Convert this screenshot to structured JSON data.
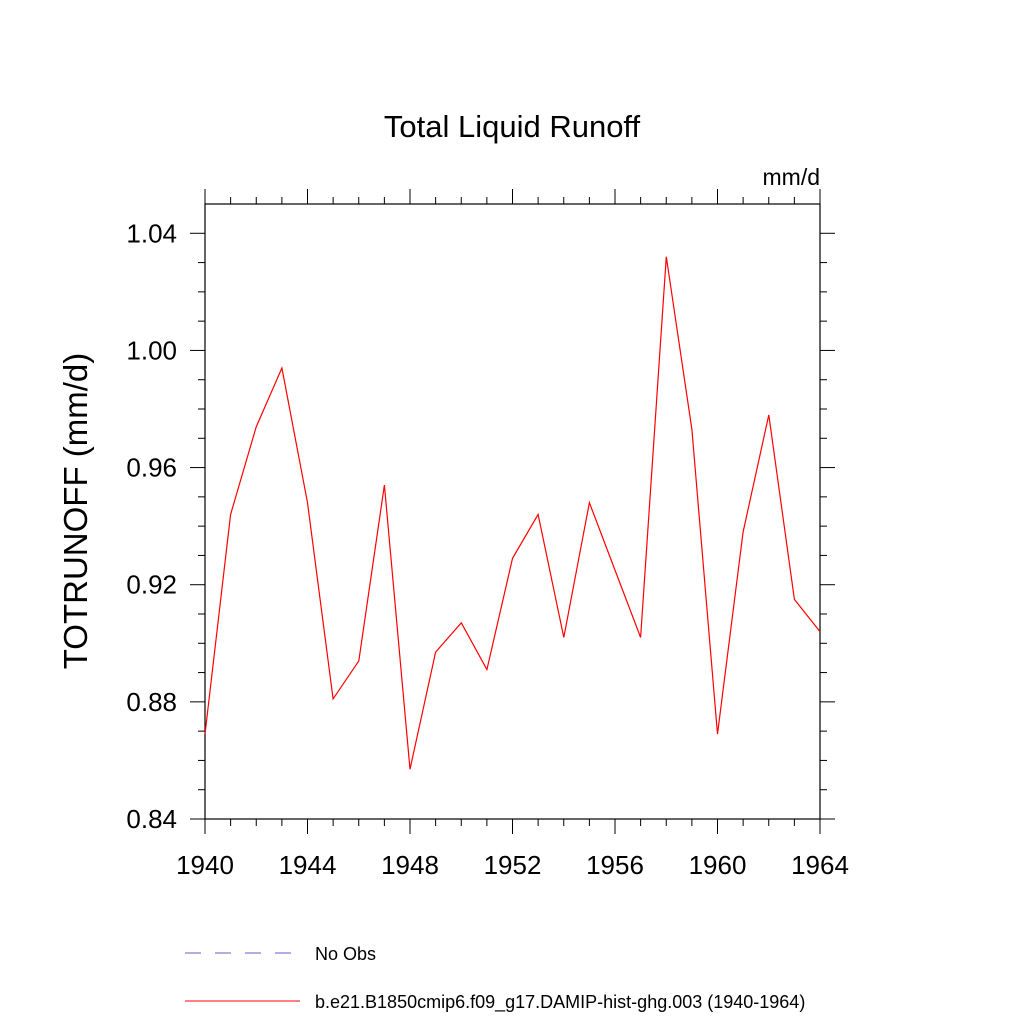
{
  "chart_data": {
    "type": "line",
    "title": "Total Liquid Runoff",
    "units_label": "mm/d",
    "ylabel": "TOTRUNOFF  (mm/d)",
    "xlabel": "",
    "xlim": [
      1940,
      1964
    ],
    "ylim": [
      0.84,
      1.05
    ],
    "x_ticks": [
      1940,
      1944,
      1948,
      1952,
      1956,
      1960,
      1964
    ],
    "x_tick_labels": [
      "1940",
      "1944",
      "1948",
      "1952",
      "1956",
      "1960",
      "1964"
    ],
    "y_ticks": [
      0.84,
      0.88,
      0.92,
      0.96,
      1.0,
      1.04
    ],
    "y_tick_labels": [
      "0.84",
      "0.88",
      "0.92",
      "0.96",
      "1.00",
      "1.04"
    ],
    "grid": false,
    "legend_position": "bottom",
    "series": [
      {
        "name": "b.e21.B1850cmip6.f09_g17.DAMIP-hist-ghg.003 (1940-1964)",
        "color": "#ff0000",
        "style": "solid",
        "x": [
          1940,
          1941,
          1942,
          1943,
          1944,
          1945,
          1946,
          1947,
          1948,
          1949,
          1950,
          1951,
          1952,
          1953,
          1954,
          1955,
          1956,
          1957,
          1958,
          1959,
          1960,
          1961,
          1962,
          1963,
          1964
        ],
        "values": [
          0.869,
          0.944,
          0.974,
          0.994,
          0.948,
          0.881,
          0.894,
          0.954,
          0.857,
          0.897,
          0.907,
          0.891,
          0.929,
          0.944,
          0.902,
          0.948,
          0.925,
          0.902,
          1.032,
          0.973,
          0.869,
          0.938,
          0.978,
          0.915,
          0.904
        ]
      }
    ],
    "legend": [
      {
        "label": "No Obs",
        "color": "#6a5acd",
        "style": "dashed"
      },
      {
        "label": "b.e21.B1850cmip6.f09_g17.DAMIP-hist-ghg.003 (1940-1964)",
        "color": "#ff0000",
        "style": "solid"
      }
    ]
  }
}
